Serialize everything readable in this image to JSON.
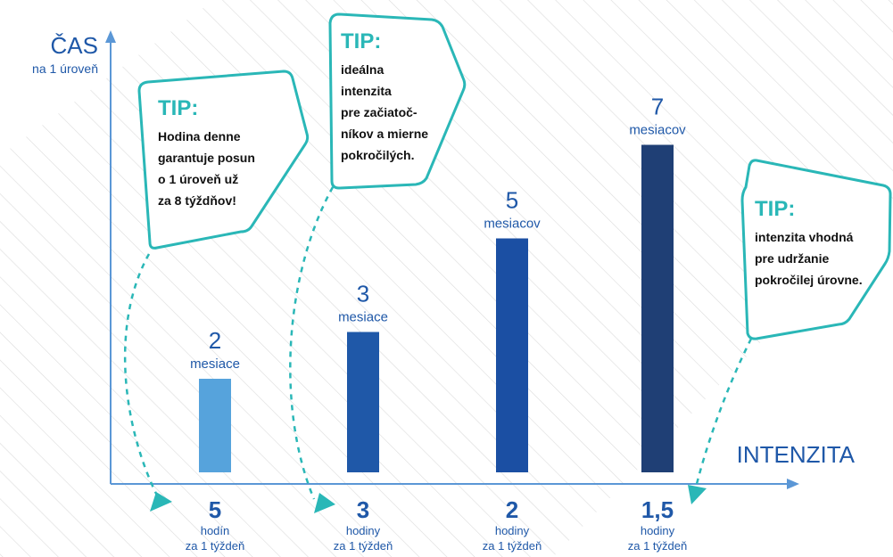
{
  "colors": {
    "axis": "#5b97d6",
    "text_blue": "#1f58a8",
    "tip_accent": "#2ab7b7",
    "hatch": "#dcdcdc"
  },
  "chart_data": {
    "type": "bar",
    "y_axis": {
      "title": "ČAS",
      "subtitle": "na 1 úroveň"
    },
    "x_axis": {
      "title": "INTENZITA"
    },
    "categories": [
      {
        "value": "5",
        "unit": "hodín",
        "period": "za 1 týždeň"
      },
      {
        "value": "3",
        "unit": "hodiny",
        "period": "za 1 týždeň"
      },
      {
        "value": "2",
        "unit": "hodiny",
        "period": "za 1 týždeň"
      },
      {
        "value": "1,5",
        "unit": "hodiny",
        "period": "za 1 týždeň"
      }
    ],
    "values": [
      2,
      3,
      5,
      7
    ],
    "value_labels": [
      {
        "num": "2",
        "unit": "mesiace"
      },
      {
        "num": "3",
        "unit": "mesiace"
      },
      {
        "num": "5",
        "unit": "mesiacov"
      },
      {
        "num": "7",
        "unit": "mesiacov"
      }
    ],
    "bar_colors": [
      "#56a3dc",
      "#1f58a8",
      "#1b4fa3",
      "#1f3f75"
    ],
    "ylim": [
      0,
      8
    ],
    "grid": false
  },
  "tips": [
    {
      "heading": "TIP:",
      "lines": [
        "Hodina denne",
        "garantuje posun",
        "o 1 úroveň už",
        "za 8 týždňov!"
      ],
      "points_to": "5"
    },
    {
      "heading": "TIP:",
      "lines": [
        "ideálna",
        "intenzita",
        "pre začiatoč-",
        "níkov a mierne",
        "pokročilých."
      ],
      "points_to": "3"
    },
    {
      "heading": "TIP:",
      "lines": [
        "intenzita vhodná",
        "pre udržanie",
        "pokročilej úrovne."
      ],
      "points_to": "1,5"
    }
  ]
}
